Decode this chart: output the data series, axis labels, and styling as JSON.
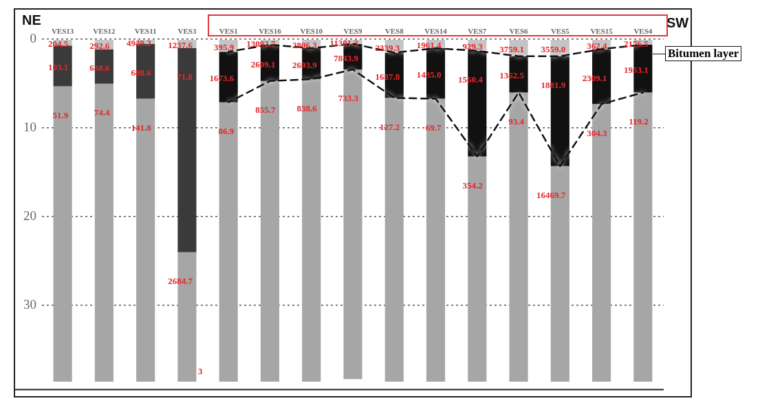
{
  "chart_data": {
    "type": "bar",
    "stacked": true,
    "categories": [
      "VES13",
      "VES12",
      "VES11",
      "VES3",
      "VES1",
      "VES16",
      "VES10",
      "VES9",
      "VES8",
      "VES14",
      "VES7",
      "VES6",
      "VES5",
      "VES15",
      "VES4"
    ],
    "series": [
      {
        "color": "#c4c4c4",
        "values": [
          0.7,
          1.1,
          0.5,
          1.0,
          1.4,
          0.6,
          1.0,
          0.5,
          1.5,
          1.0,
          1.3,
          1.9,
          1.9,
          1.1,
          0.6
        ]
      },
      {
        "colors": [
          "#3a3a3a",
          "#3a3a3a",
          "#3a3a3a",
          "#3a3a3a",
          "#111111",
          "#111111",
          "#111111",
          "#111111",
          "#111111",
          "#111111",
          "#111111",
          "#111111",
          "#111111",
          "#111111",
          "#111111"
        ],
        "values": [
          4.6,
          3.9,
          6.2,
          23.0,
          5.7,
          4.1,
          3.5,
          2.9,
          5.1,
          5.7,
          11.9,
          4.1,
          12.4,
          6.2,
          5.4
        ]
      },
      {
        "color": "#a6a6a6",
        "values": [
          33.3,
          33.6,
          31.9,
          14.6,
          31.5,
          33.9,
          34.1,
          34.9,
          32.0,
          31.9,
          25.4,
          32.6,
          24.3,
          31.3,
          32.6
        ]
      },
      {
        "type": "line",
        "color": "#111111",
        "line_style": "dashed",
        "marker": "none",
        "values": [
          null,
          null,
          null,
          null,
          1.4,
          0.6,
          1.0,
          0.5,
          1.5,
          1.0,
          1.3,
          1.9,
          1.9,
          1.1,
          0.6
        ]
      },
      {
        "type": "line",
        "color": "#111111",
        "line_style": "dashed",
        "marker": "none",
        "values": [
          null,
          null,
          null,
          null,
          7.1,
          4.7,
          4.5,
          3.4,
          6.6,
          6.7,
          13.2,
          6.0,
          14.3,
          7.3,
          6.0
        ]
      }
    ],
    "ylim": [
      39.5,
      0
    ],
    "yticks": [
      0,
      10,
      20,
      30
    ],
    "grid": "y",
    "legend": false,
    "annotations": [
      "NE",
      "SW",
      "Bitumen layer",
      "204.5",
      "103.1",
      "51.9",
      "292.6",
      "638.6",
      "74.4",
      "4949.2",
      "688.6",
      "141.8",
      "1237.6",
      "71.8",
      "2684.7",
      "395.9",
      "1673.6",
      "86.9",
      "13092.7",
      "2609.1",
      "855.7",
      "2806.3",
      "2693.9",
      "838.6",
      "11301.3",
      "7843.9",
      "733.3",
      "2339.3",
      "1687.8",
      "127.2",
      "1961.4",
      "1435.0",
      "69.7",
      "929.3",
      "1560.4",
      "354.2",
      "3759.1",
      "1362.5",
      "93.4",
      "3559.0",
      "1881.9",
      "16469.7",
      "362.4",
      "2309.1",
      "304.3",
      "2176.5",
      "1953.1",
      "119.2",
      "3"
    ]
  }
}
